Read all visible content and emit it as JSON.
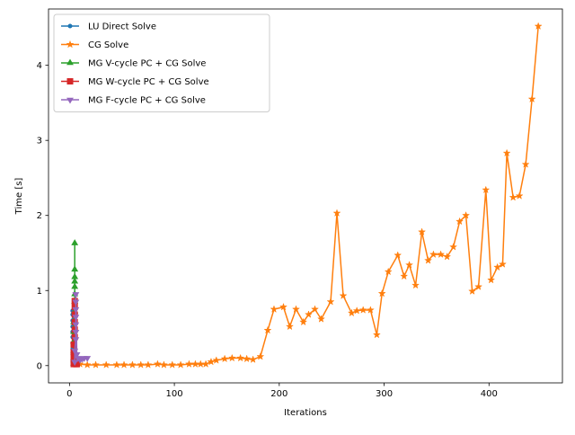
{
  "chart_data": {
    "type": "line",
    "title": "",
    "xlabel": "Iterations",
    "ylabel": "Time [s]",
    "xlim": [
      -20,
      470
    ],
    "ylim": [
      -0.23,
      4.75
    ],
    "xticks": [
      0,
      100,
      200,
      300,
      400
    ],
    "yticks": [
      0,
      1,
      2,
      3,
      4
    ],
    "grid": false,
    "legend_position": "top-left",
    "series": [
      {
        "name": "LU Direct Solve",
        "color": "#1f77b4",
        "marker": "circle",
        "points": [
          [
            3,
            0.05
          ],
          [
            3,
            0.15
          ],
          [
            3,
            0.22
          ],
          [
            3,
            0.3
          ],
          [
            3,
            0.38
          ],
          [
            3,
            0.45
          ],
          [
            3,
            0.52
          ],
          [
            3,
            0.6
          ],
          [
            3,
            0.68
          ],
          [
            3,
            0.73
          ]
        ]
      },
      {
        "name": "CG Solve",
        "color": "#ff7f0e",
        "marker": "star",
        "points": [
          [
            6,
            0.05
          ],
          [
            10,
            0.02
          ],
          [
            17,
            0.01
          ],
          [
            25,
            0.01
          ],
          [
            35,
            0.01
          ],
          [
            45,
            0.01
          ],
          [
            52,
            0.01
          ],
          [
            60,
            0.01
          ],
          [
            68,
            0.01
          ],
          [
            75,
            0.01
          ],
          [
            84,
            0.02
          ],
          [
            90,
            0.01
          ],
          [
            98,
            0.01
          ],
          [
            106,
            0.01
          ],
          [
            114,
            0.02
          ],
          [
            120,
            0.02
          ],
          [
            125,
            0.02
          ],
          [
            130,
            0.02
          ],
          [
            135,
            0.05
          ],
          [
            140,
            0.07
          ],
          [
            148,
            0.09
          ],
          [
            155,
            0.1
          ],
          [
            163,
            0.1
          ],
          [
            169,
            0.09
          ],
          [
            175,
            0.08
          ],
          [
            182,
            0.12
          ],
          [
            189,
            0.47
          ],
          [
            195,
            0.75
          ],
          [
            204,
            0.78
          ],
          [
            210,
            0.52
          ],
          [
            216,
            0.75
          ],
          [
            223,
            0.58
          ],
          [
            228,
            0.68
          ],
          [
            234,
            0.75
          ],
          [
            240,
            0.62
          ],
          [
            249,
            0.85
          ],
          [
            255,
            2.03
          ],
          [
            261,
            0.93
          ],
          [
            269,
            0.7
          ],
          [
            274,
            0.73
          ],
          [
            280,
            0.74
          ],
          [
            287,
            0.74
          ],
          [
            293,
            0.41
          ],
          [
            298,
            0.96
          ],
          [
            304,
            1.25
          ],
          [
            313,
            1.47
          ],
          [
            319,
            1.19
          ],
          [
            324,
            1.34
          ],
          [
            330,
            1.07
          ],
          [
            336,
            1.78
          ],
          [
            342,
            1.4
          ],
          [
            347,
            1.48
          ],
          [
            354,
            1.48
          ],
          [
            360,
            1.45
          ],
          [
            366,
            1.58
          ],
          [
            372,
            1.92
          ],
          [
            378,
            2.0
          ],
          [
            384,
            0.99
          ],
          [
            390,
            1.05
          ],
          [
            397,
            2.34
          ],
          [
            402,
            1.14
          ],
          [
            408,
            1.31
          ],
          [
            413,
            1.35
          ],
          [
            417,
            2.83
          ],
          [
            423,
            2.24
          ],
          [
            429,
            2.26
          ],
          [
            435,
            2.68
          ],
          [
            441,
            3.55
          ],
          [
            447,
            4.52
          ]
        ]
      },
      {
        "name": "MG V-cycle PC + CG Solve",
        "color": "#2ca02c",
        "marker": "triangle-up",
        "points": [
          [
            4,
            0.03
          ],
          [
            4,
            0.1
          ],
          [
            4,
            0.2
          ],
          [
            4,
            0.32
          ],
          [
            4,
            0.45
          ],
          [
            4,
            0.58
          ],
          [
            5,
            0.72
          ],
          [
            5,
            0.85
          ],
          [
            5,
            0.95
          ],
          [
            5,
            1.05
          ],
          [
            5,
            1.12
          ],
          [
            5,
            1.18
          ],
          [
            5,
            1.28
          ],
          [
            5,
            1.63
          ]
        ]
      },
      {
        "name": "MG W-cycle PC + CG Solve",
        "color": "#d62728",
        "marker": "square",
        "points": [
          [
            4,
            0.02
          ],
          [
            4,
            0.1
          ],
          [
            4,
            0.18
          ],
          [
            4,
            0.28
          ],
          [
            5,
            0.38
          ],
          [
            5,
            0.48
          ],
          [
            5,
            0.58
          ],
          [
            5,
            0.68
          ],
          [
            5,
            0.78
          ],
          [
            5,
            0.86
          ],
          [
            6,
            0.02
          ],
          [
            7,
            0.02
          ]
        ]
      },
      {
        "name": "MG F-cycle PC + CG Solve",
        "color": "#9467bd",
        "marker": "triangle-down",
        "points": [
          [
            5,
            0.05
          ],
          [
            5,
            0.2
          ],
          [
            6,
            0.35
          ],
          [
            6,
            0.45
          ],
          [
            6,
            0.55
          ],
          [
            6,
            0.65
          ],
          [
            6,
            0.75
          ],
          [
            6,
            0.85
          ],
          [
            6,
            0.95
          ],
          [
            7,
            0.15
          ],
          [
            8,
            0.1
          ],
          [
            10,
            0.08
          ],
          [
            12,
            0.09
          ],
          [
            14,
            0.1
          ],
          [
            17,
            0.1
          ]
        ]
      }
    ]
  }
}
